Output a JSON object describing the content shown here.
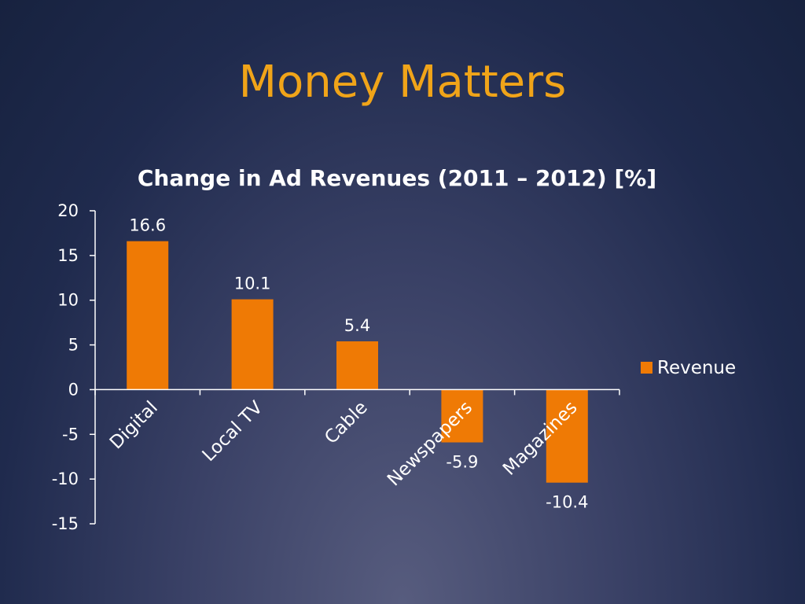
{
  "slide": {
    "title": "Money Matters"
  },
  "colors": {
    "title": "#f0a419",
    "bar": "#ef7a05",
    "text": "#ffffff",
    "axis": "#ffffff"
  },
  "chart_data": {
    "type": "bar",
    "title": "Change in Ad Revenues (2011 – 2012) [%]",
    "categories": [
      "Digital",
      "Local TV",
      "Cable",
      "Newspapers",
      "Magazines"
    ],
    "series": [
      {
        "name": "Revenue",
        "values": [
          16.6,
          10.1,
          5.4,
          -5.9,
          -10.4
        ]
      }
    ],
    "data_labels": [
      "16.6",
      "10.1",
      "5.4",
      "-5.9",
      "-10.4"
    ],
    "ylim": [
      -15,
      20
    ],
    "yticks": [
      20,
      15,
      10,
      5,
      0,
      -5,
      -10,
      -15
    ],
    "xlabel": "",
    "ylabel": "",
    "grid": false,
    "legend": "right"
  }
}
